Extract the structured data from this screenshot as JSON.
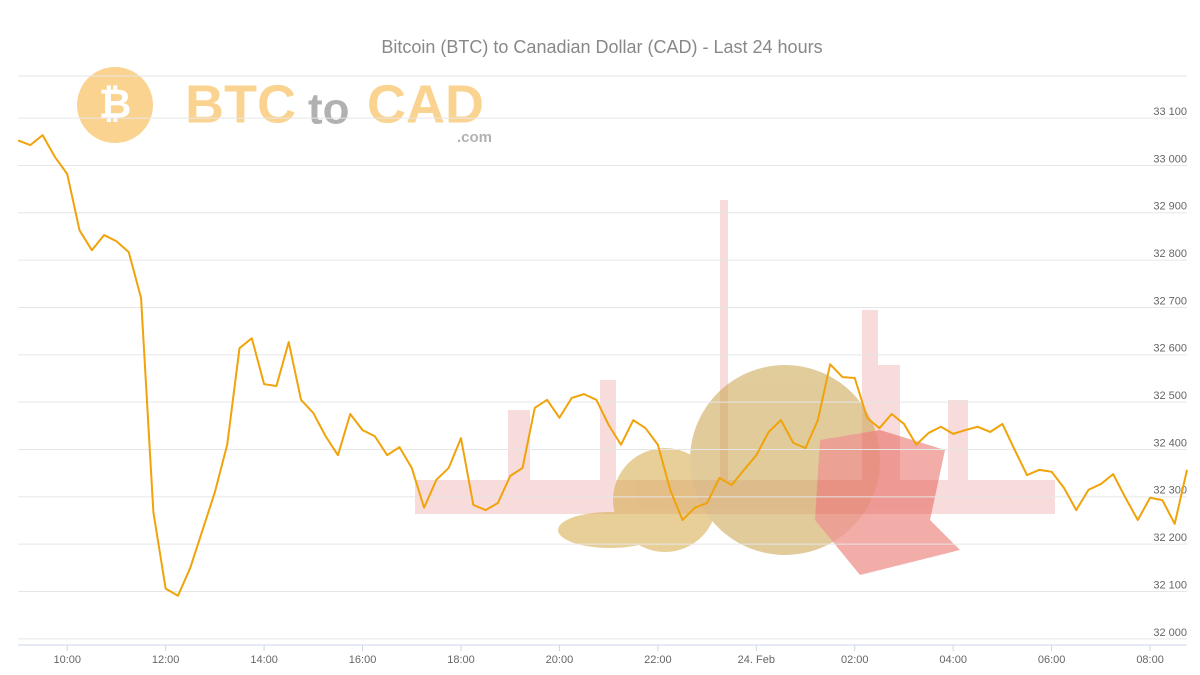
{
  "logo": {
    "brand_left": "BTC",
    "brand_mid": "to",
    "brand_right": "CAD",
    "domain": ".com"
  },
  "chart_data": {
    "type": "line",
    "title": "Bitcoin (BTC) to Canadian Dollar (CAD) - Last 24 hours",
    "x": [
      9,
      9.25,
      9.5,
      9.75,
      10,
      10.25,
      10.5,
      10.75,
      11,
      11.25,
      11.5,
      11.75,
      12,
      12.25,
      12.5,
      12.75,
      13,
      13.25,
      13.5,
      13.75,
      14,
      14.25,
      14.5,
      14.75,
      15,
      15.25,
      15.5,
      15.75,
      16,
      16.25,
      16.5,
      16.75,
      17,
      17.25,
      17.5,
      17.75,
      18,
      18.25,
      18.5,
      18.75,
      19,
      19.25,
      19.5,
      19.75,
      20,
      20.25,
      20.5,
      20.75,
      21,
      21.25,
      21.5,
      21.75,
      22,
      22.25,
      22.5,
      22.75,
      23,
      23.25,
      23.5,
      23.75,
      24,
      24.25,
      24.5,
      24.75,
      25,
      25.25,
      25.5,
      25.75,
      26,
      26.25,
      26.5,
      26.75,
      27,
      27.25,
      27.5,
      27.75,
      28,
      28.25,
      28.5,
      28.75,
      29,
      29.25,
      29.5,
      29.75,
      30,
      30.25,
      30.5,
      30.75,
      31,
      31.25,
      31.5,
      31.75,
      32,
      32.25,
      32.5,
      32.75
    ],
    "series": [
      {
        "name": "BTC/CAD",
        "color": "#f0a30a",
        "values": [
          33053,
          33043,
          33064,
          33018,
          32982,
          32863,
          32821,
          32853,
          32840,
          32817,
          32720,
          32268,
          32106,
          32091,
          32150,
          32230,
          32310,
          32410,
          32614,
          32635,
          32538,
          32534,
          32627,
          32505,
          32477,
          32428,
          32388,
          32475,
          32441,
          32428,
          32388,
          32405,
          32361,
          32277,
          32336,
          32361,
          32424,
          32283,
          32272,
          32287,
          32344,
          32361,
          32488,
          32505,
          32467,
          32509,
          32517,
          32505,
          32452,
          32410,
          32462,
          32445,
          32410,
          32315,
          32251,
          32277,
          32287,
          32340,
          32325,
          32357,
          32388,
          32437,
          32462,
          32414,
          32403,
          32462,
          32580,
          32553,
          32551,
          32467,
          32445,
          32475,
          32454,
          32410,
          32435,
          32448,
          32433,
          32441,
          32448,
          32437,
          32454,
          32399,
          32346,
          32357,
          32353,
          32319,
          32272,
          32315,
          32327,
          32348,
          32298,
          32251,
          32298,
          32293,
          32243,
          32357
        ]
      }
    ],
    "xlim": [
      9,
      32.75
    ],
    "xticks": [
      {
        "value": 10,
        "label": "10:00"
      },
      {
        "value": 12,
        "label": "12:00"
      },
      {
        "value": 14,
        "label": "14:00"
      },
      {
        "value": 16,
        "label": "16:00"
      },
      {
        "value": 18,
        "label": "18:00"
      },
      {
        "value": 20,
        "label": "20:00"
      },
      {
        "value": 22,
        "label": "22:00"
      },
      {
        "value": 24,
        "label": "24. Feb"
      },
      {
        "value": 26,
        "label": "02:00"
      },
      {
        "value": 28,
        "label": "04:00"
      },
      {
        "value": 30,
        "label": "06:00"
      },
      {
        "value": 32,
        "label": "08:00"
      }
    ],
    "ylim": [
      31987,
      33189
    ],
    "yticks": [
      {
        "value": 32000,
        "label": "32 000"
      },
      {
        "value": 32100,
        "label": "32 100"
      },
      {
        "value": 32200,
        "label": "32 200"
      },
      {
        "value": 32300,
        "label": "32 300"
      },
      {
        "value": 32400,
        "label": "32 400"
      },
      {
        "value": 32500,
        "label": "32 500"
      },
      {
        "value": 32600,
        "label": "32 600"
      },
      {
        "value": 32700,
        "label": "32 700"
      },
      {
        "value": 32800,
        "label": "32 800"
      },
      {
        "value": 32900,
        "label": "32 900"
      },
      {
        "value": 33000,
        "label": "33 000"
      },
      {
        "value": 33100,
        "label": "33 100"
      }
    ],
    "grid": true
  }
}
